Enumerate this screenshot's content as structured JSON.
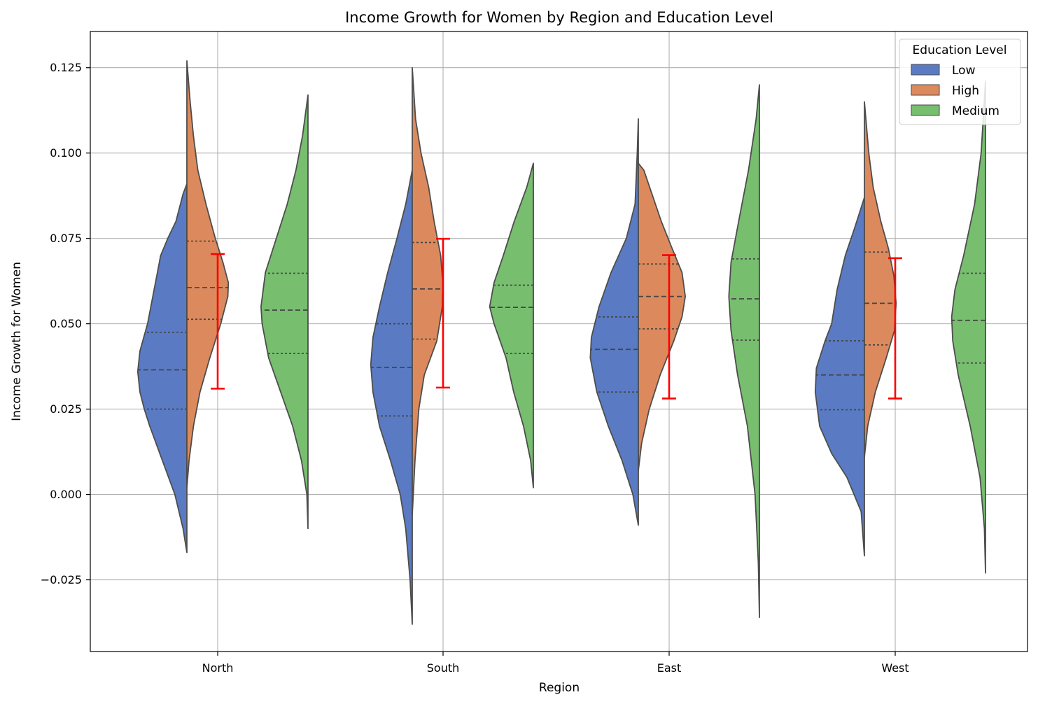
{
  "chart_data": {
    "type": "violin",
    "title": "Income Growth for Women by Region and Education Level",
    "xlabel": "Region",
    "ylabel": "Income Growth for Women",
    "categories": [
      "North",
      "South",
      "East",
      "West"
    ],
    "ylim": [
      -0.046,
      0.1356
    ],
    "yticks": [
      -0.025,
      0.0,
      0.025,
      0.05,
      0.075,
      0.1,
      0.125
    ],
    "ytick_labels": [
      "−0.025",
      "0.000",
      "0.025",
      "0.050",
      "0.075",
      "0.100",
      "0.125"
    ],
    "grid": true,
    "legend": {
      "title": "Education Level",
      "placement": "top-right",
      "entries": [
        {
          "name": "Low",
          "color": "#5a7bc4"
        },
        {
          "name": "High",
          "color": "#dc8a5d"
        },
        {
          "name": "Medium",
          "color": "#77be6f"
        }
      ]
    },
    "series": [
      {
        "name": "Low",
        "color": "#5a7bc4",
        "side": "left",
        "regions": [
          {
            "region": "North",
            "min": -0.017,
            "max": 0.091,
            "q1": 0.025,
            "median": 0.0365,
            "q3": 0.0475,
            "profile": [
              [
                -0.017,
                0.0
              ],
              [
                -0.01,
                0.07
              ],
              [
                0.0,
                0.22
              ],
              [
                0.01,
                0.45
              ],
              [
                0.02,
                0.68
              ],
              [
                0.025,
                0.78
              ],
              [
                0.03,
                0.86
              ],
              [
                0.036,
                0.9
              ],
              [
                0.042,
                0.86
              ],
              [
                0.05,
                0.72
              ],
              [
                0.06,
                0.6
              ],
              [
                0.07,
                0.48
              ],
              [
                0.075,
                0.35
              ],
              [
                0.08,
                0.2
              ],
              [
                0.088,
                0.07
              ],
              [
                0.091,
                0.0
              ]
            ]
          },
          {
            "region": "South",
            "min": -0.038,
            "max": 0.095,
            "q1": 0.023,
            "median": 0.0372,
            "q3": 0.05,
            "profile": [
              [
                -0.038,
                0.0
              ],
              [
                -0.025,
                0.04
              ],
              [
                -0.01,
                0.12
              ],
              [
                0.0,
                0.22
              ],
              [
                0.01,
                0.4
              ],
              [
                0.02,
                0.6
              ],
              [
                0.03,
                0.72
              ],
              [
                0.038,
                0.76
              ],
              [
                0.046,
                0.72
              ],
              [
                0.055,
                0.6
              ],
              [
                0.065,
                0.45
              ],
              [
                0.075,
                0.28
              ],
              [
                0.085,
                0.12
              ],
              [
                0.095,
                0.0
              ]
            ]
          },
          {
            "region": "East",
            "min": -0.009,
            "max": 0.11,
            "q1": 0.03,
            "median": 0.0425,
            "q3": 0.052,
            "profile": [
              [
                -0.009,
                0.0
              ],
              [
                0.0,
                0.1
              ],
              [
                0.01,
                0.3
              ],
              [
                0.02,
                0.55
              ],
              [
                0.03,
                0.76
              ],
              [
                0.04,
                0.88
              ],
              [
                0.046,
                0.86
              ],
              [
                0.055,
                0.72
              ],
              [
                0.065,
                0.5
              ],
              [
                0.075,
                0.22
              ],
              [
                0.085,
                0.06
              ],
              [
                0.1,
                0.02
              ],
              [
                0.11,
                0.0
              ]
            ]
          },
          {
            "region": "West",
            "min": -0.018,
            "max": 0.087,
            "q1": 0.0248,
            "median": 0.035,
            "q3": 0.045,
            "profile": [
              [
                -0.018,
                0.0
              ],
              [
                -0.005,
                0.06
              ],
              [
                0.005,
                0.32
              ],
              [
                0.012,
                0.6
              ],
              [
                0.02,
                0.82
              ],
              [
                0.03,
                0.9
              ],
              [
                0.037,
                0.88
              ],
              [
                0.045,
                0.72
              ],
              [
                0.05,
                0.6
              ],
              [
                0.06,
                0.5
              ],
              [
                0.07,
                0.35
              ],
              [
                0.078,
                0.18
              ],
              [
                0.087,
                0.0
              ]
            ]
          }
        ]
      },
      {
        "name": "High",
        "color": "#dc8a5d",
        "side": "right",
        "regions": [
          {
            "region": "North",
            "min": 0.002,
            "max": 0.127,
            "q1": 0.0513,
            "median": 0.0606,
            "q3": 0.0742,
            "profile": [
              [
                0.002,
                0.0
              ],
              [
                0.01,
                0.04
              ],
              [
                0.02,
                0.12
              ],
              [
                0.03,
                0.24
              ],
              [
                0.04,
                0.42
              ],
              [
                0.05,
                0.62
              ],
              [
                0.058,
                0.75
              ],
              [
                0.062,
                0.76
              ],
              [
                0.068,
                0.66
              ],
              [
                0.075,
                0.52
              ],
              [
                0.085,
                0.35
              ],
              [
                0.095,
                0.2
              ],
              [
                0.105,
                0.12
              ],
              [
                0.115,
                0.06
              ],
              [
                0.127,
                0.0
              ]
            ]
          },
          {
            "region": "South",
            "min": -0.006,
            "max": 0.125,
            "q1": 0.0455,
            "median": 0.0602,
            "q3": 0.0738,
            "profile": [
              [
                -0.006,
                0.0
              ],
              [
                0.01,
                0.05
              ],
              [
                0.025,
                0.12
              ],
              [
                0.035,
                0.22
              ],
              [
                0.045,
                0.45
              ],
              [
                0.055,
                0.55
              ],
              [
                0.062,
                0.56
              ],
              [
                0.07,
                0.52
              ],
              [
                0.08,
                0.4
              ],
              [
                0.09,
                0.3
              ],
              [
                0.1,
                0.16
              ],
              [
                0.11,
                0.06
              ],
              [
                0.125,
                0.0
              ]
            ]
          },
          {
            "region": "East",
            "min": 0.007,
            "max": 0.097,
            "q1": 0.0485,
            "median": 0.058,
            "q3": 0.0675,
            "profile": [
              [
                0.007,
                0.0
              ],
              [
                0.015,
                0.06
              ],
              [
                0.025,
                0.2
              ],
              [
                0.035,
                0.4
              ],
              [
                0.045,
                0.65
              ],
              [
                0.052,
                0.8
              ],
              [
                0.058,
                0.86
              ],
              [
                0.065,
                0.8
              ],
              [
                0.072,
                0.62
              ],
              [
                0.08,
                0.42
              ],
              [
                0.088,
                0.25
              ],
              [
                0.095,
                0.1
              ],
              [
                0.097,
                0.0
              ]
            ]
          },
          {
            "region": "West",
            "min": 0.011,
            "max": 0.115,
            "q1": 0.0438,
            "median": 0.056,
            "q3": 0.071,
            "profile": [
              [
                0.011,
                0.0
              ],
              [
                0.02,
                0.06
              ],
              [
                0.03,
                0.2
              ],
              [
                0.04,
                0.4
              ],
              [
                0.048,
                0.55
              ],
              [
                0.056,
                0.58
              ],
              [
                0.064,
                0.54
              ],
              [
                0.072,
                0.44
              ],
              [
                0.08,
                0.3
              ],
              [
                0.09,
                0.16
              ],
              [
                0.1,
                0.08
              ],
              [
                0.115,
                0.0
              ]
            ]
          }
        ]
      },
      {
        "name": "Medium",
        "color": "#77be6f",
        "side": "left",
        "regions": [
          {
            "region": "North",
            "min": -0.01,
            "max": 0.117,
            "q1": 0.0413,
            "median": 0.054,
            "q3": 0.0648,
            "profile": [
              [
                -0.01,
                0.0
              ],
              [
                0.0,
                0.02
              ],
              [
                0.01,
                0.12
              ],
              [
                0.02,
                0.28
              ],
              [
                0.03,
                0.5
              ],
              [
                0.04,
                0.72
              ],
              [
                0.05,
                0.84
              ],
              [
                0.055,
                0.86
              ],
              [
                0.065,
                0.78
              ],
              [
                0.075,
                0.58
              ],
              [
                0.085,
                0.38
              ],
              [
                0.095,
                0.22
              ],
              [
                0.105,
                0.1
              ],
              [
                0.117,
                0.0
              ]
            ]
          },
          {
            "region": "South",
            "min": 0.002,
            "max": 0.097,
            "q1": 0.0413,
            "median": 0.0548,
            "q3": 0.0613,
            "profile": [
              [
                0.002,
                0.0
              ],
              [
                0.01,
                0.05
              ],
              [
                0.02,
                0.18
              ],
              [
                0.03,
                0.36
              ],
              [
                0.04,
                0.5
              ],
              [
                0.05,
                0.72
              ],
              [
                0.055,
                0.8
              ],
              [
                0.062,
                0.72
              ],
              [
                0.07,
                0.55
              ],
              [
                0.08,
                0.35
              ],
              [
                0.09,
                0.12
              ],
              [
                0.097,
                0.0
              ]
            ]
          },
          {
            "region": "East",
            "min": -0.036,
            "max": 0.12,
            "q1": 0.0452,
            "median": 0.0573,
            "q3": 0.069,
            "profile": [
              [
                -0.036,
                0.0
              ],
              [
                -0.02,
                0.02
              ],
              [
                0.0,
                0.08
              ],
              [
                0.02,
                0.22
              ],
              [
                0.035,
                0.4
              ],
              [
                0.048,
                0.52
              ],
              [
                0.058,
                0.56
              ],
              [
                0.068,
                0.52
              ],
              [
                0.08,
                0.38
              ],
              [
                0.095,
                0.2
              ],
              [
                0.11,
                0.06
              ],
              [
                0.12,
                0.0
              ]
            ]
          },
          {
            "region": "West",
            "min": -0.023,
            "max": 0.121,
            "q1": 0.0385,
            "median": 0.051,
            "q3": 0.0648,
            "profile": [
              [
                -0.023,
                0.0
              ],
              [
                -0.01,
                0.02
              ],
              [
                0.005,
                0.1
              ],
              [
                0.02,
                0.28
              ],
              [
                0.035,
                0.5
              ],
              [
                0.045,
                0.6
              ],
              [
                0.052,
                0.62
              ],
              [
                0.06,
                0.56
              ],
              [
                0.07,
                0.4
              ],
              [
                0.085,
                0.2
              ],
              [
                0.1,
                0.08
              ],
              [
                0.121,
                0.0
              ]
            ]
          }
        ]
      }
    ],
    "error_bars": {
      "color": "#ff0000",
      "values": [
        {
          "region": "North",
          "low": 0.031,
          "high": 0.0704
        },
        {
          "region": "South",
          "low": 0.0313,
          "high": 0.0749
        },
        {
          "region": "East",
          "low": 0.0281,
          "high": 0.0701
        },
        {
          "region": "West",
          "low": 0.0281,
          "high": 0.0692
        }
      ]
    }
  }
}
